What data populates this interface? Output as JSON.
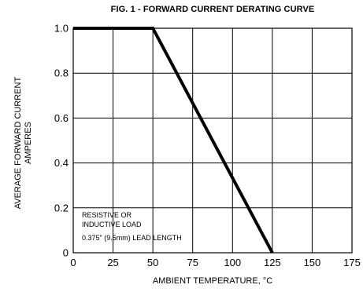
{
  "chart_data": {
    "type": "line",
    "title": "FIG. 1 - FORWARD CURRENT DERATING CURVE",
    "xlabel": "AMBIENT TEMPERATURE, °C",
    "ylabel_lines": [
      "AVERAGE FORWARD CURRENT",
      "AMPERES"
    ],
    "xlim": [
      0,
      175
    ],
    "ylim": [
      0,
      1.0
    ],
    "xticks": [
      0,
      25,
      50,
      75,
      100,
      125,
      150,
      175
    ],
    "yticks": [
      0,
      0.2,
      0.4,
      0.6,
      0.8,
      1.0
    ],
    "ytick_labels": [
      "0",
      "0.2",
      "0.4",
      "0.6",
      "0.8",
      "1.0"
    ],
    "grid": true,
    "series": [
      {
        "x": [
          0,
          50,
          125
        ],
        "y": [
          1.0,
          1.0,
          0
        ]
      }
    ],
    "annotation_lines": [
      "RESISTIVE OR",
      "INDUCTIVE LOAD",
      "0.375\" (9.5mm) LEAD LENGTH"
    ]
  }
}
